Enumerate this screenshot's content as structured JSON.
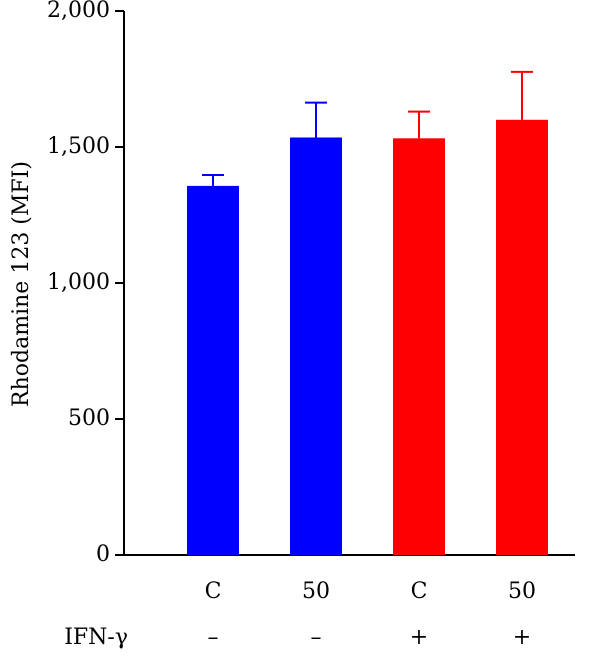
{
  "chart_data": {
    "type": "bar",
    "ylabel": "Rhodamine 123 (MFI)",
    "ylim": [
      0,
      2000
    ],
    "yticks": [
      0,
      500,
      1000,
      1500,
      2000
    ],
    "ytick_labels": [
      "0",
      "500",
      "1,000",
      "1,500",
      "2,000"
    ],
    "categories": [
      "C",
      "50",
      "C",
      "50"
    ],
    "values": [
      1357,
      1535,
      1532,
      1600
    ],
    "errors": [
      40,
      128,
      98,
      176
    ],
    "colors": [
      "#0000ff",
      "#0000ff",
      "#ff0000",
      "#ff0000"
    ],
    "row_label": "IFN-γ",
    "row_values": [
      "–",
      "–",
      "+",
      "+"
    ],
    "grid": false,
    "legend": "none"
  }
}
